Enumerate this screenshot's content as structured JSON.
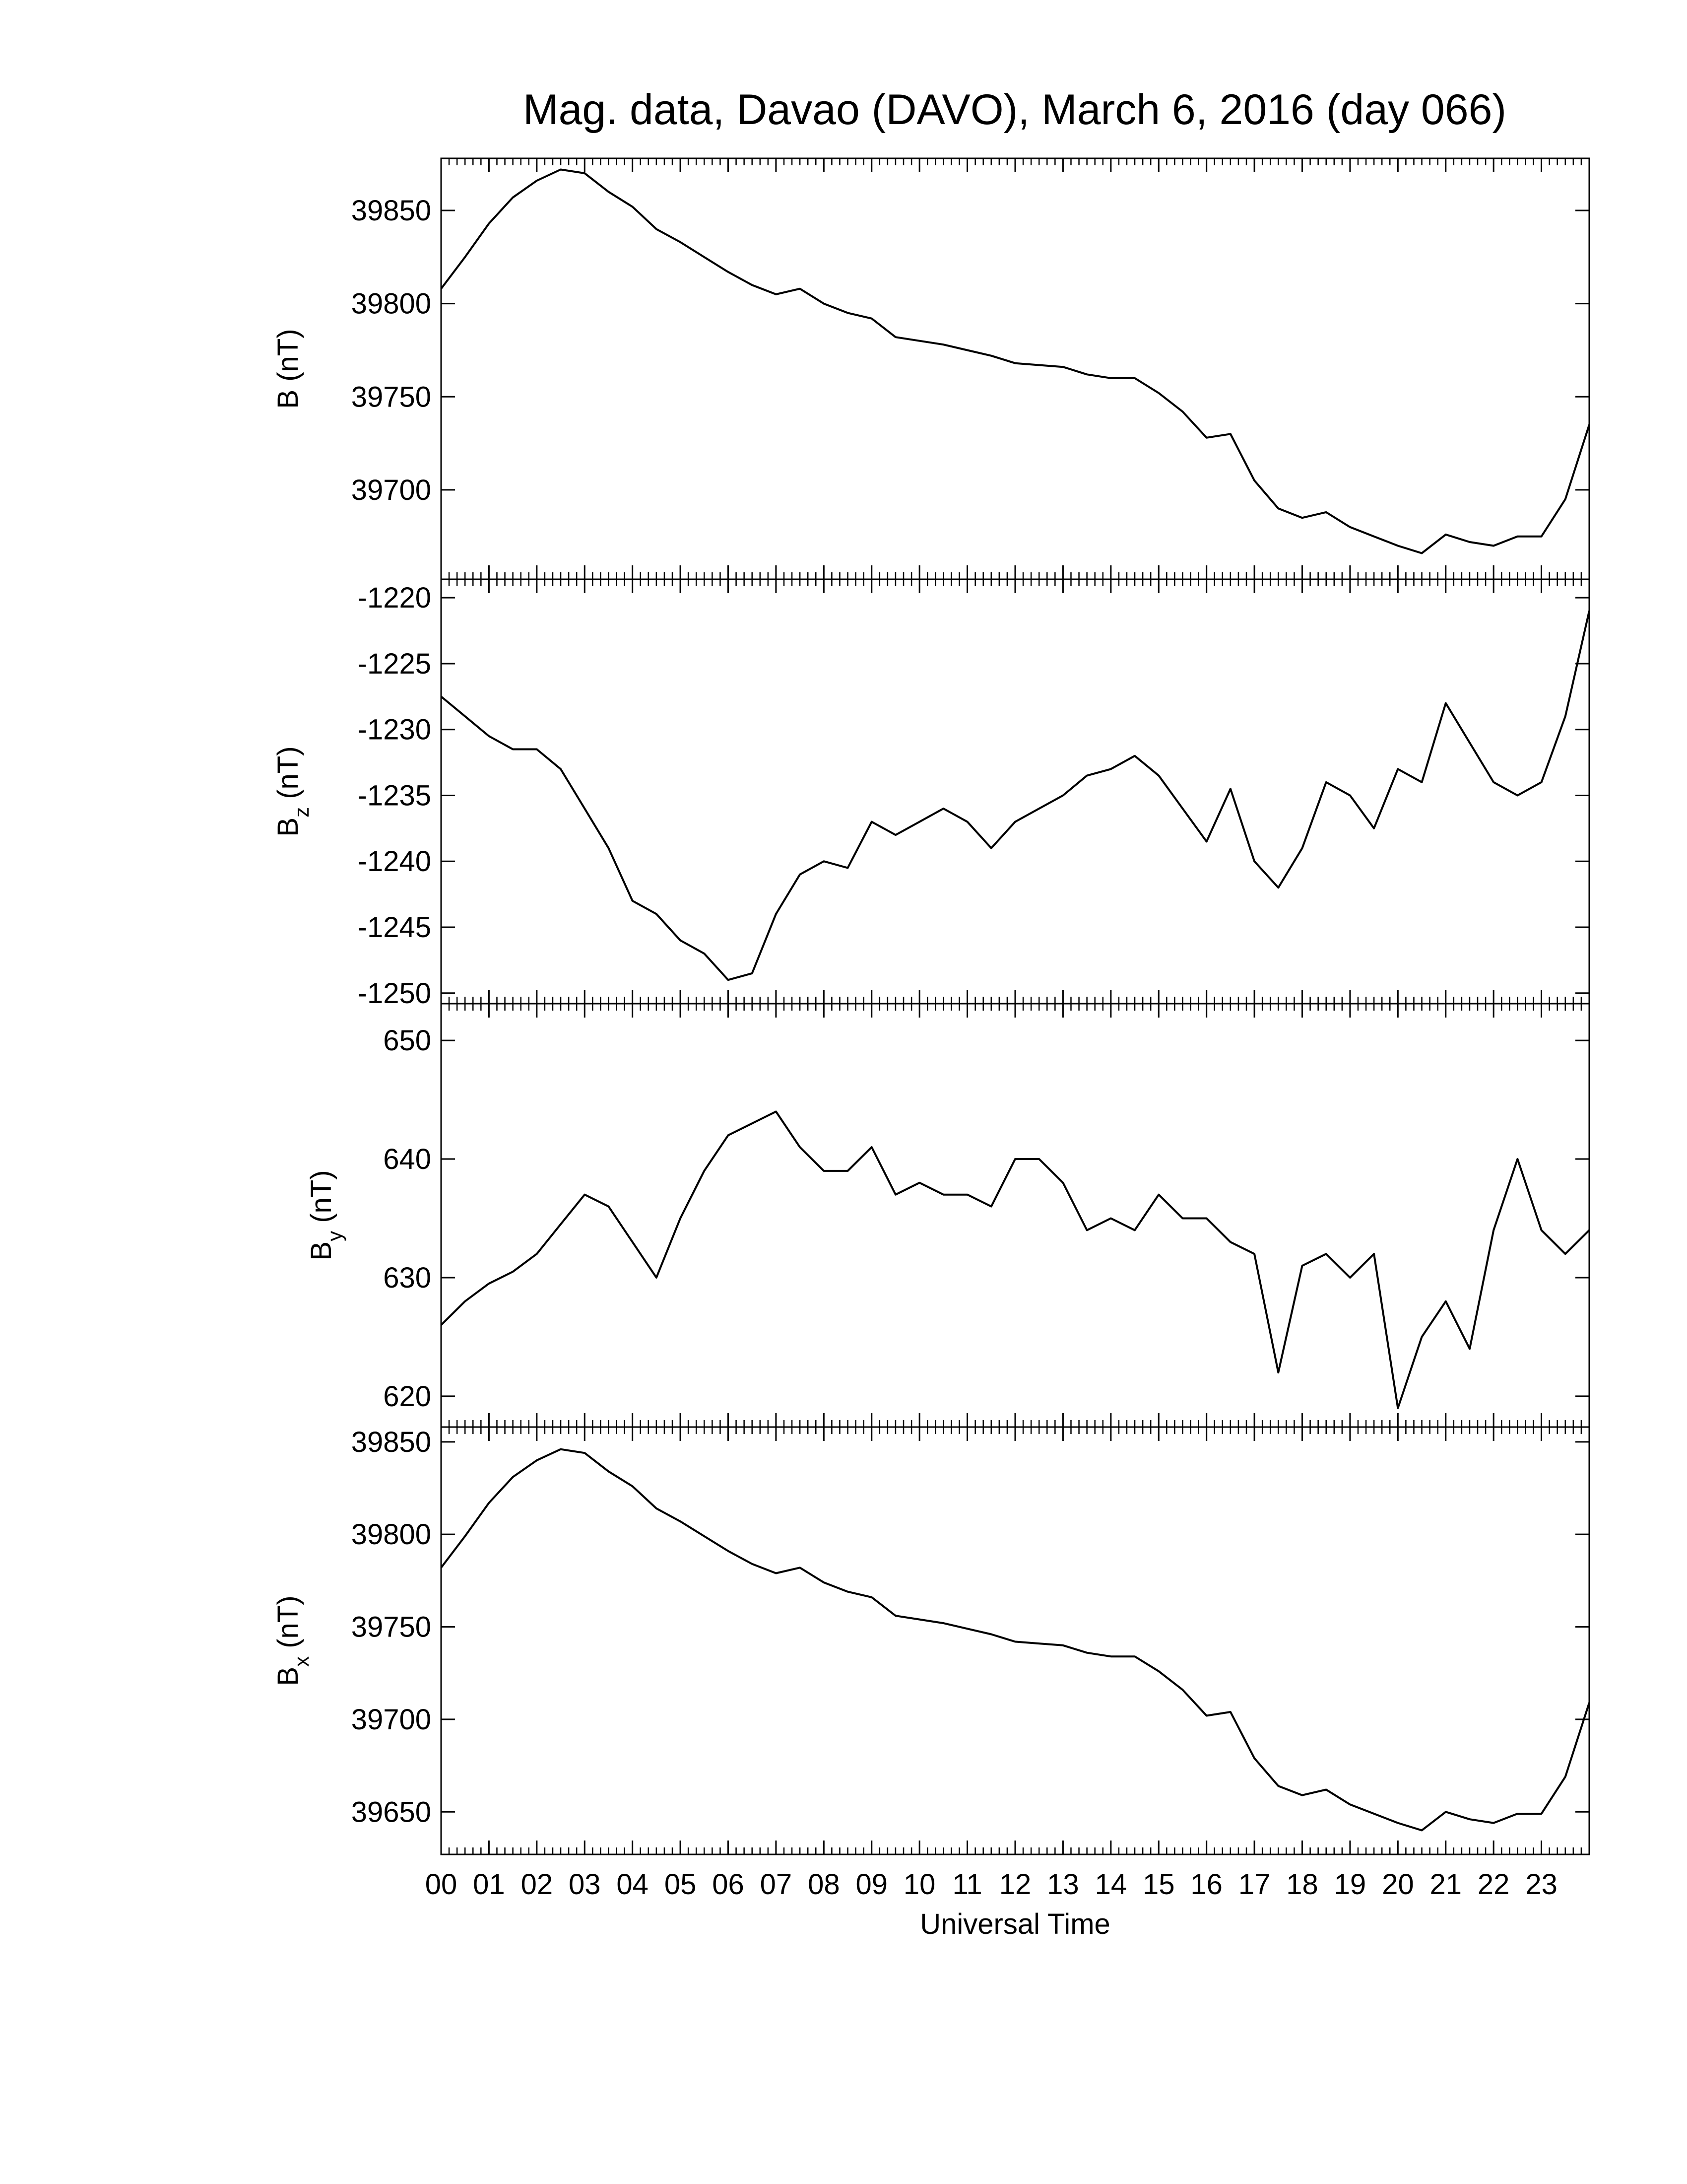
{
  "chart_data": [
    {
      "type": "line",
      "title": "Mag. data, Davao (DAVO), March 6, 2016 (day 066)",
      "ylabel": {
        "main": "B",
        "unit": "(nT)"
      },
      "x": [
        0,
        0.5,
        1,
        1.5,
        2,
        2.5,
        3,
        3.5,
        4,
        4.5,
        5,
        5.5,
        6,
        6.5,
        7,
        7.5,
        8,
        8.5,
        9,
        9.5,
        10,
        10.5,
        11,
        11.5,
        12,
        12.5,
        13,
        13.5,
        14,
        14.5,
        15,
        15.5,
        16,
        16.5,
        17,
        17.5,
        18,
        18.5,
        19,
        19.5,
        20,
        20.5,
        21,
        21.5,
        22,
        22.5,
        23,
        23.5,
        24
      ],
      "values": [
        39808,
        39825,
        39843,
        39857,
        39866,
        39872,
        39870,
        39860,
        39852,
        39840,
        39833,
        39825,
        39817,
        39810,
        39805,
        39808,
        39800,
        39795,
        39792,
        39782,
        39780,
        39778,
        39775,
        39772,
        39768,
        39767,
        39766,
        39762,
        39760,
        39760,
        39752,
        39742,
        39728,
        39730,
        39705,
        39690,
        39685,
        39688,
        39680,
        39675,
        39670,
        39666,
        39676,
        39672,
        39670,
        39675,
        39675,
        39695,
        39735
      ],
      "color": "#000000",
      "xlim": [
        0,
        24
      ],
      "xticks": [
        0,
        1,
        2,
        3,
        4,
        5,
        6,
        7,
        8,
        9,
        10,
        11,
        12,
        13,
        14,
        15,
        16,
        17,
        18,
        19,
        20,
        21,
        22,
        23
      ],
      "ylim": [
        39652,
        39878
      ],
      "yticks": [
        39700,
        39750,
        39800,
        39850
      ]
    },
    {
      "type": "line",
      "ylabel": {
        "main": "B",
        "sub": "z",
        "unit": "(nT)"
      },
      "x": [
        0,
        0.5,
        1,
        1.5,
        2,
        2.5,
        3,
        3.5,
        4,
        4.5,
        5,
        5.5,
        6,
        6.5,
        7,
        7.5,
        8,
        8.5,
        9,
        9.5,
        10,
        10.5,
        11,
        11.5,
        12,
        12.5,
        13,
        13.5,
        14,
        14.5,
        15,
        15.5,
        16,
        16.5,
        17,
        17.5,
        18,
        18.5,
        19,
        19.5,
        20,
        20.5,
        21,
        21.5,
        22,
        22.5,
        23,
        23.5,
        24
      ],
      "values": [
        -1227.5,
        -1229,
        -1230.5,
        -1231.5,
        -1231.5,
        -1233,
        -1236,
        -1239,
        -1243,
        -1244,
        -1246,
        -1247,
        -1249,
        -1248.5,
        -1244,
        -1241,
        -1240,
        -1240.5,
        -1237,
        -1238,
        -1237,
        -1236,
        -1237,
        -1239,
        -1237,
        -1236,
        -1235,
        -1233.5,
        -1233,
        -1232,
        -1233.5,
        -1236,
        -1238.5,
        -1234.5,
        -1240,
        -1242,
        -1239,
        -1234,
        -1235,
        -1237.5,
        -1233,
        -1234,
        -1228,
        -1231,
        -1234,
        -1235,
        -1234,
        -1229,
        -1221
      ],
      "color": "#000000",
      "xlim": [
        0,
        24
      ],
      "xticks": [
        0,
        1,
        2,
        3,
        4,
        5,
        6,
        7,
        8,
        9,
        10,
        11,
        12,
        13,
        14,
        15,
        16,
        17,
        18,
        19,
        20,
        21,
        22,
        23
      ],
      "ylim": [
        -1250.8,
        -1218.6
      ],
      "yticks": [
        -1250,
        -1245,
        -1240,
        -1235,
        -1230,
        -1225,
        -1220
      ]
    },
    {
      "type": "line",
      "ylabel": {
        "main": "B",
        "sub": "y",
        "unit": "(nT)"
      },
      "x": [
        0,
        0.5,
        1,
        1.5,
        2,
        2.5,
        3,
        3.5,
        4,
        4.5,
        5,
        5.5,
        6,
        6.5,
        7,
        7.5,
        8,
        8.5,
        9,
        9.5,
        10,
        10.5,
        11,
        11.5,
        12,
        12.5,
        13,
        13.5,
        14,
        14.5,
        15,
        15.5,
        16,
        16.5,
        17,
        17.5,
        18,
        18.5,
        19,
        19.5,
        20,
        20.5,
        21,
        21.5,
        22,
        22.5,
        23,
        23.5,
        24
      ],
      "values": [
        626,
        628,
        629.5,
        630.5,
        632,
        634.5,
        637,
        636,
        633,
        630,
        635,
        639,
        642,
        643,
        644,
        641,
        639,
        639,
        641,
        637,
        638,
        637,
        637,
        636,
        640,
        640,
        638,
        634,
        635,
        634,
        637,
        635,
        635,
        633,
        632,
        622,
        631,
        632,
        630,
        632,
        619,
        625,
        628,
        624,
        634,
        640,
        634,
        632,
        634
      ],
      "color": "#000000",
      "xlim": [
        0,
        24
      ],
      "xticks": [
        0,
        1,
        2,
        3,
        4,
        5,
        6,
        7,
        8,
        9,
        10,
        11,
        12,
        13,
        14,
        15,
        16,
        17,
        18,
        19,
        20,
        21,
        22,
        23
      ],
      "ylim": [
        617.4,
        653.1
      ],
      "yticks": [
        620,
        630,
        640,
        650
      ]
    },
    {
      "type": "line",
      "xlabel": "Universal Time",
      "ylabel": {
        "main": "B",
        "sub": "x",
        "unit": "(nT)"
      },
      "x": [
        0,
        0.5,
        1,
        1.5,
        2,
        2.5,
        3,
        3.5,
        4,
        4.5,
        5,
        5.5,
        6,
        6.5,
        7,
        7.5,
        8,
        8.5,
        9,
        9.5,
        10,
        10.5,
        11,
        11.5,
        12,
        12.5,
        13,
        13.5,
        14,
        14.5,
        15,
        15.5,
        16,
        16.5,
        17,
        17.5,
        18,
        18.5,
        19,
        19.5,
        20,
        20.5,
        21,
        21.5,
        22,
        22.5,
        23,
        23.5,
        24
      ],
      "values": [
        39782,
        39799,
        39817,
        39831,
        39840,
        39846,
        39844,
        39834,
        39826,
        39814,
        39807,
        39799,
        39791,
        39784,
        39779,
        39782,
        39774,
        39769,
        39766,
        39756,
        39754,
        39752,
        39749,
        39746,
        39742,
        39741,
        39740,
        39736,
        39734,
        39734,
        39726,
        39716,
        39702,
        39704,
        39679,
        39664,
        39659,
        39662,
        39654,
        39649,
        39644,
        39640,
        39650,
        39646,
        39644,
        39649,
        39649,
        39669,
        39709
      ],
      "color": "#000000",
      "xlim": [
        0,
        24
      ],
      "xticks": [
        {
          "value": 0,
          "label": "00"
        },
        {
          "value": 1,
          "label": "01"
        },
        {
          "value": 2,
          "label": "02"
        },
        {
          "value": 3,
          "label": "03"
        },
        {
          "value": 4,
          "label": "04"
        },
        {
          "value": 5,
          "label": "05"
        },
        {
          "value": 6,
          "label": "06"
        },
        {
          "value": 7,
          "label": "07"
        },
        {
          "value": 8,
          "label": "08"
        },
        {
          "value": 9,
          "label": "09"
        },
        10,
        11,
        12,
        13,
        14,
        15,
        16,
        17,
        18,
        19,
        20,
        21,
        22,
        23
      ],
      "ylim": [
        39627,
        39858
      ],
      "yticks": [
        39650,
        39700,
        39750,
        39800,
        39850
      ]
    }
  ]
}
